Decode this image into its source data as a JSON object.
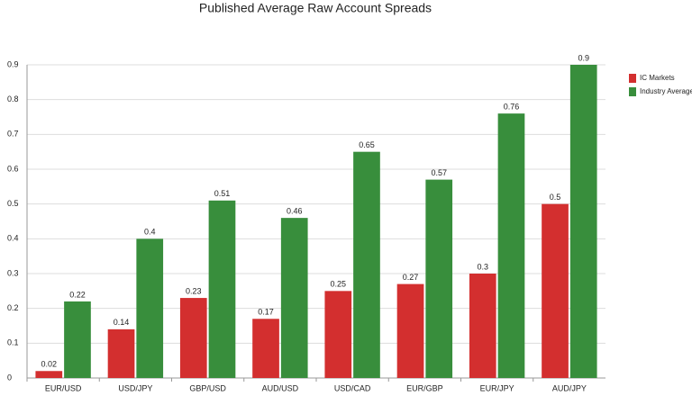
{
  "chart_data": {
    "type": "bar",
    "title": "Published Average Raw Account Spreads",
    "categories": [
      "EUR/USD",
      "USD/JPY",
      "GBP/USD",
      "AUD/USD",
      "USD/CAD",
      "EUR/GBP",
      "EUR/JPY",
      "AUD/JPY"
    ],
    "series": [
      {
        "name": "IC Markets",
        "color": "#d32f2f",
        "values": [
          0.02,
          0.14,
          0.23,
          0.17,
          0.25,
          0.27,
          0.3,
          0.5
        ]
      },
      {
        "name": "Industry Average",
        "color": "#388e3c",
        "values": [
          0.22,
          0.4,
          0.51,
          0.46,
          0.65,
          0.57,
          0.76,
          0.9
        ]
      }
    ],
    "ylim": [
      0,
      0.9
    ],
    "yticks": [
      0,
      0.1,
      0.2,
      0.3,
      0.4,
      0.5,
      0.6,
      0.7,
      0.8,
      0.9
    ],
    "grid": true
  }
}
